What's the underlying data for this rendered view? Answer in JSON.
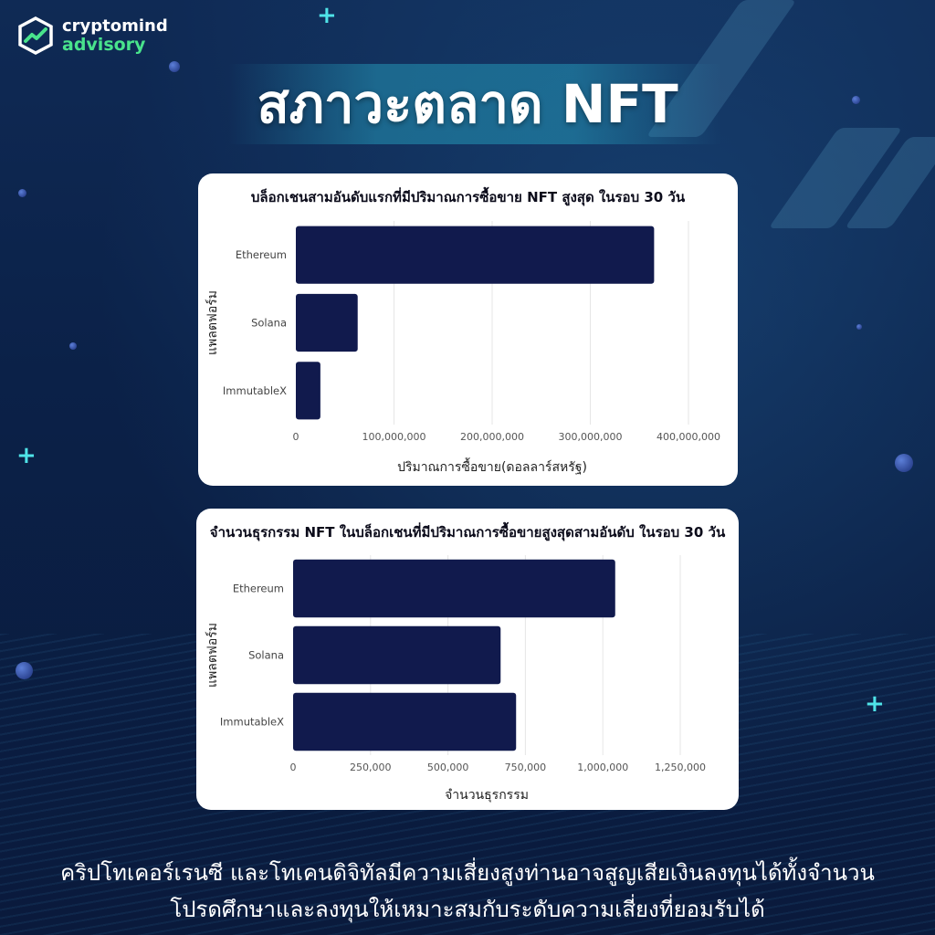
{
  "brand": {
    "line1": "cryptomind",
    "line2": "advisory"
  },
  "title": "สภาวะตลาด NFT",
  "colors": {
    "bar": "#111a4d",
    "accent": "#49e38c",
    "plus": "#4fe3e8"
  },
  "chart_data": [
    {
      "type": "bar",
      "orientation": "horizontal",
      "title": "บล็อกเชนสามอันดับแรกที่มีปริมาณการซื้อขาย NFT สูงสุด ในรอบ 30 วัน",
      "xlabel": "ปริมาณการซื้อขาย(ดอลลาร์สหรัฐ)",
      "ylabel": "แพลตฟอร์ม",
      "categories": [
        "Ethereum",
        "Solana",
        "ImmutableX"
      ],
      "values": [
        365000000,
        63000000,
        25000000
      ],
      "xlim": [
        0,
        400000000
      ],
      "xticks": [
        "0",
        "100,000,000",
        "200,000,000",
        "300,000,000",
        "400,000,000"
      ],
      "grid": true
    },
    {
      "type": "bar",
      "orientation": "horizontal",
      "title": "จำนวนธุรกรรม NFT ในบล็อกเชนที่มีปริมาณการซื้อขายสูงสุดสามอันดับ ในรอบ 30 วัน",
      "xlabel": "จำนวนธุรกรรม",
      "ylabel": "แพลตฟอร์ม",
      "categories": [
        "Ethereum",
        "Solana",
        "ImmutableX"
      ],
      "values": [
        1040000,
        670000,
        720000
      ],
      "xlim": [
        0,
        1250000
      ],
      "xticks": [
        "0",
        "250,000",
        "500,000",
        "750,000",
        "1,000,000",
        "1,250,000"
      ],
      "grid": true
    }
  ],
  "disclaimer": {
    "line1": "คริปโทเคอร์เรนซี และโทเคนดิจิทัลมีความเสี่ยงสูงท่านอาจสูญเสียเงินลงทุนได้ทั้งจำนวน",
    "line2": "โปรดศึกษาและลงทุนให้เหมาะสมกับระดับความเสี่ยงที่ยอมรับได้"
  }
}
